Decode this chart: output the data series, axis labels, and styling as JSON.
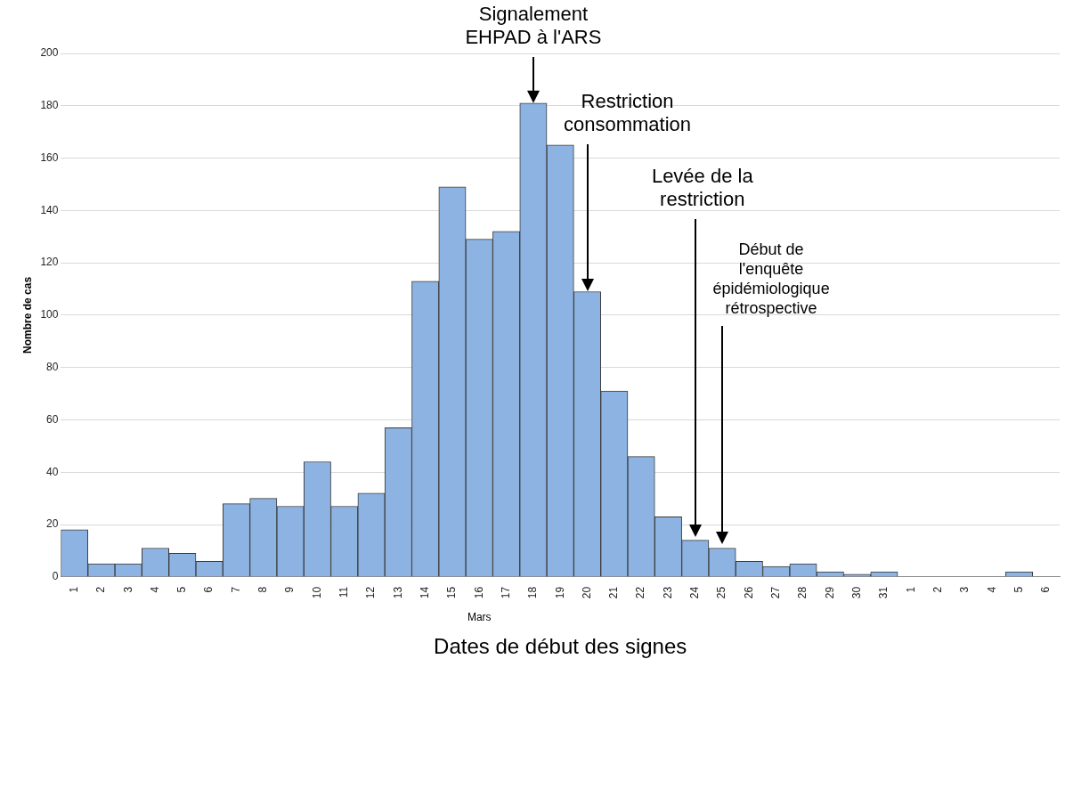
{
  "chart_data": {
    "type": "bar",
    "xlabel": "Dates de début des signes",
    "ylabel": "Nombre de cas",
    "categories": [
      "1",
      "2",
      "3",
      "4",
      "5",
      "6",
      "7",
      "8",
      "9",
      "10",
      "11",
      "12",
      "13",
      "14",
      "15",
      "16",
      "17",
      "18",
      "19",
      "20",
      "21",
      "22",
      "23",
      "24",
      "25",
      "26",
      "27",
      "28",
      "29",
      "30",
      "31",
      "1",
      "2",
      "3",
      "4",
      "5",
      "6"
    ],
    "values": [
      18,
      5,
      5,
      11,
      9,
      6,
      28,
      30,
      27,
      44,
      27,
      32,
      57,
      113,
      149,
      129,
      132,
      181,
      165,
      109,
      71,
      46,
      23,
      14,
      11,
      6,
      4,
      5,
      2,
      1,
      2,
      0,
      0,
      0,
      0,
      2,
      0
    ],
    "color": "#8db3e2",
    "ylim": [
      0,
      200
    ],
    "yticks": [
      0,
      20,
      40,
      60,
      80,
      100,
      120,
      140,
      160,
      180,
      200
    ],
    "grid": "y",
    "legend": false,
    "annotations": [
      {
        "text": "Signalement\nEHPAD à l'ARS",
        "x": "18",
        "y": 181
      },
      "Restriction\nconsommation",
      "Levée de la\nrestriction",
      "Début de\nl'enquête\népidémiologique\nrétrospective",
      "Mars"
    ]
  }
}
